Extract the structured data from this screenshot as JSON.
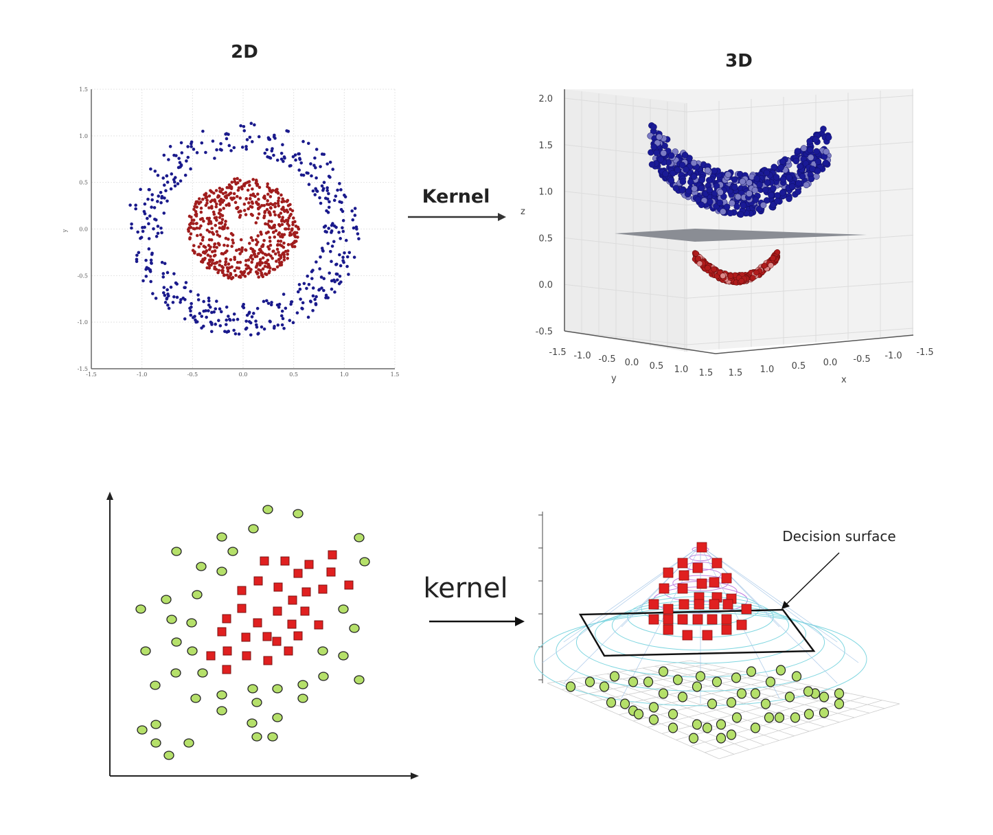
{
  "top": {
    "left_title": "2D",
    "right_title": "3D",
    "arrow_label": "Kernel",
    "plot2d": {
      "type": "scatter",
      "xlim": [
        -1.5,
        1.5
      ],
      "ylim": [
        -1.5,
        1.5
      ],
      "xticks": [
        "-1.5",
        "-1.0",
        "-0.5",
        "0.0",
        "0.5",
        "1.0",
        "1.5"
      ],
      "yticks": [
        "1.5",
        "1.0",
        "0.5",
        "0.0",
        "-0.5",
        "-1.0",
        "-1.5"
      ],
      "ylabel": "y",
      "grid": true,
      "classes": [
        {
          "shape": "outer ring",
          "radius_range": [
            0.8,
            1.15
          ],
          "color": "#1a1a8c"
        },
        {
          "shape": "inner disk",
          "radius_range": [
            0.0,
            0.55
          ],
          "color": "#a01d1d"
        }
      ]
    },
    "plot3d": {
      "zticks": [
        "2.0",
        "1.5",
        "1.0",
        "0.5",
        "0.0",
        "-0.5"
      ],
      "yticks": [
        "-1.5",
        "-1.0",
        "-0.5",
        "0.0",
        "0.5",
        "1.0",
        "1.5"
      ],
      "xticks": [
        "1.5",
        "1.0",
        "0.5",
        "0.0",
        "-0.5",
        "-1.0",
        "-1.5"
      ],
      "xlabel": "x",
      "ylabel": "y",
      "zlabel": "z",
      "separating_plane_z": 0.5,
      "plane_color": "#8a8d94"
    }
  },
  "bottom": {
    "arrow_label": "kernel",
    "surface_label": "Decision surface",
    "colors": {
      "circle": "#b5e06a",
      "square": "#e02020"
    }
  }
}
